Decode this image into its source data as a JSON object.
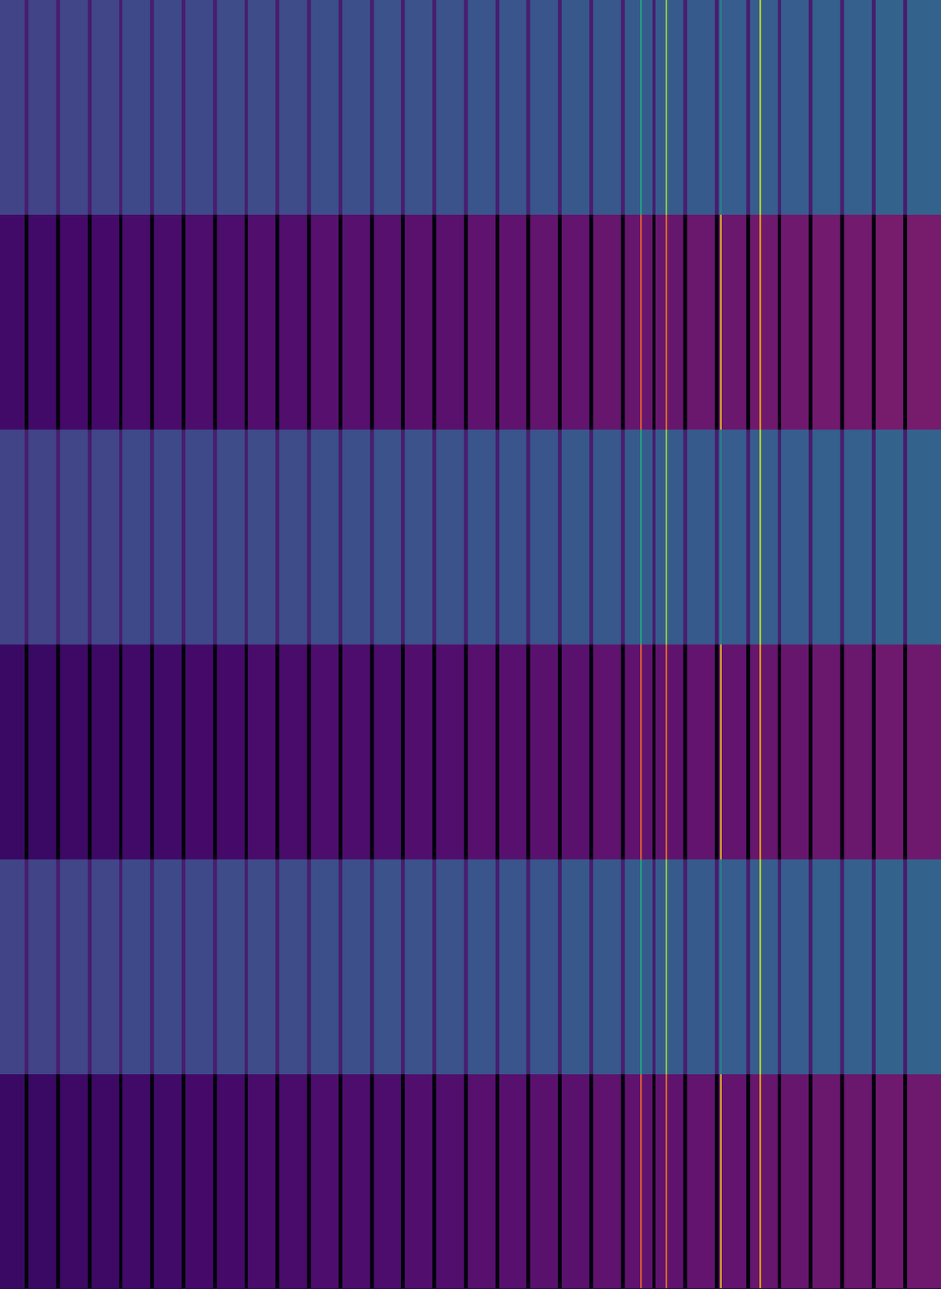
{
  "chart_data": {
    "type": "heatmap",
    "tick_labels": false,
    "xlim": [
      0,
      30
    ],
    "zlim": [
      0,
      1
    ],
    "x_edges": [
      0,
      0.79,
      0.91,
      1.79,
      1.91,
      2.79,
      2.91,
      3.79,
      3.91,
      4.79,
      4.91,
      5.79,
      5.91,
      6.79,
      6.91,
      7.79,
      7.91,
      8.79,
      8.91,
      9.79,
      9.91,
      10.79,
      10.91,
      11.79,
      11.91,
      12.79,
      12.91,
      13.79,
      13.91,
      14.79,
      14.91,
      15.79,
      15.91,
      16.79,
      16.91,
      17.79,
      17.91,
      18.79,
      18.91,
      19.79,
      19.91,
      20.4,
      20.46,
      20.79,
      20.91,
      21.21,
      21.27,
      21.79,
      21.91,
      22.79,
      22.91,
      22.95,
      23.01,
      23.79,
      23.91,
      24.2,
      24.26,
      24.79,
      24.91,
      25.79,
      25.91,
      26.79,
      26.91,
      27.79,
      27.91,
      28.79,
      28.91,
      30
    ],
    "series": [
      {
        "color": "viridis",
        "values": [
          0.2,
          0.08,
          0.2,
          0.08,
          0.21,
          0.08,
          0.21,
          0.08,
          0.22,
          0.08,
          0.22,
          0.08,
          0.22,
          0.08,
          0.23,
          0.08,
          0.23,
          0.08,
          0.23,
          0.08,
          0.24,
          0.08,
          0.24,
          0.08,
          0.25,
          0.08,
          0.25,
          0.08,
          0.25,
          0.08,
          0.26,
          0.08,
          0.26,
          0.08,
          0.26,
          0.08,
          0.27,
          0.08,
          0.27,
          0.08,
          0.28,
          0.6,
          0.28,
          0.08,
          0.28,
          0.85,
          0.28,
          0.08,
          0.28,
          0.08,
          0.29,
          0.45,
          0.29,
          0.08,
          0.29,
          0.9,
          0.29,
          0.08,
          0.29,
          0.08,
          0.3,
          0.08,
          0.3,
          0.08,
          0.31,
          0.08,
          0.31
        ]
      },
      {
        "color": "inferno",
        "values": [
          0.2,
          0.02,
          0.2,
          0.02,
          0.21,
          0.02,
          0.21,
          0.02,
          0.22,
          0.02,
          0.22,
          0.02,
          0.23,
          0.02,
          0.23,
          0.02,
          0.24,
          0.02,
          0.24,
          0.02,
          0.25,
          0.02,
          0.25,
          0.02,
          0.25,
          0.02,
          0.26,
          0.02,
          0.26,
          0.02,
          0.27,
          0.02,
          0.27,
          0.02,
          0.28,
          0.02,
          0.28,
          0.02,
          0.29,
          0.02,
          0.29,
          0.65,
          0.29,
          0.02,
          0.29,
          0.7,
          0.29,
          0.02,
          0.3,
          0.02,
          0.3,
          0.85,
          0.3,
          0.02,
          0.31,
          0.8,
          0.31,
          0.02,
          0.31,
          0.02,
          0.32,
          0.02,
          0.32,
          0.02,
          0.33,
          0.02,
          0.33
        ]
      },
      {
        "color": "viridis",
        "values": [
          0.2,
          0.08,
          0.2,
          0.08,
          0.21,
          0.08,
          0.21,
          0.08,
          0.22,
          0.08,
          0.22,
          0.08,
          0.22,
          0.08,
          0.23,
          0.08,
          0.23,
          0.08,
          0.23,
          0.08,
          0.24,
          0.08,
          0.24,
          0.08,
          0.25,
          0.08,
          0.25,
          0.08,
          0.25,
          0.08,
          0.26,
          0.08,
          0.26,
          0.08,
          0.26,
          0.08,
          0.27,
          0.08,
          0.27,
          0.08,
          0.28,
          0.6,
          0.28,
          0.08,
          0.28,
          0.85,
          0.28,
          0.08,
          0.28,
          0.08,
          0.29,
          0.45,
          0.29,
          0.08,
          0.29,
          0.9,
          0.29,
          0.08,
          0.29,
          0.08,
          0.3,
          0.08,
          0.3,
          0.08,
          0.31,
          0.08,
          0.31
        ]
      },
      {
        "color": "inferno",
        "values": [
          0.18,
          0.02,
          0.18,
          0.02,
          0.19,
          0.02,
          0.19,
          0.02,
          0.2,
          0.02,
          0.2,
          0.02,
          0.21,
          0.02,
          0.21,
          0.02,
          0.22,
          0.02,
          0.22,
          0.02,
          0.23,
          0.02,
          0.23,
          0.02,
          0.23,
          0.02,
          0.24,
          0.02,
          0.24,
          0.02,
          0.25,
          0.02,
          0.25,
          0.02,
          0.26,
          0.02,
          0.26,
          0.02,
          0.27,
          0.02,
          0.27,
          0.65,
          0.27,
          0.02,
          0.27,
          0.7,
          0.27,
          0.02,
          0.28,
          0.02,
          0.28,
          0.85,
          0.28,
          0.02,
          0.29,
          0.8,
          0.29,
          0.02,
          0.29,
          0.02,
          0.3,
          0.02,
          0.3,
          0.02,
          0.31,
          0.02,
          0.31
        ]
      },
      {
        "color": "viridis",
        "values": [
          0.2,
          0.08,
          0.2,
          0.08,
          0.21,
          0.08,
          0.21,
          0.08,
          0.22,
          0.08,
          0.22,
          0.08,
          0.22,
          0.08,
          0.23,
          0.08,
          0.23,
          0.08,
          0.23,
          0.08,
          0.24,
          0.08,
          0.24,
          0.08,
          0.25,
          0.08,
          0.25,
          0.08,
          0.25,
          0.08,
          0.26,
          0.08,
          0.26,
          0.08,
          0.26,
          0.08,
          0.27,
          0.08,
          0.27,
          0.08,
          0.28,
          0.6,
          0.28,
          0.08,
          0.28,
          0.85,
          0.28,
          0.08,
          0.28,
          0.08,
          0.29,
          0.45,
          0.29,
          0.08,
          0.29,
          0.9,
          0.29,
          0.08,
          0.29,
          0.08,
          0.3,
          0.08,
          0.3,
          0.08,
          0.31,
          0.08,
          0.31
        ]
      },
      {
        "color": "inferno",
        "values": [
          0.18,
          0.02,
          0.18,
          0.02,
          0.19,
          0.02,
          0.19,
          0.02,
          0.2,
          0.02,
          0.2,
          0.02,
          0.21,
          0.02,
          0.21,
          0.02,
          0.22,
          0.02,
          0.22,
          0.02,
          0.23,
          0.02,
          0.23,
          0.02,
          0.23,
          0.02,
          0.24,
          0.02,
          0.24,
          0.02,
          0.25,
          0.02,
          0.25,
          0.02,
          0.26,
          0.02,
          0.26,
          0.02,
          0.27,
          0.02,
          0.27,
          0.65,
          0.27,
          0.02,
          0.27,
          0.7,
          0.27,
          0.02,
          0.28,
          0.02,
          0.28,
          0.85,
          0.28,
          0.02,
          0.29,
          0.8,
          0.29,
          0.02,
          0.29,
          0.02,
          0.3,
          0.02,
          0.3,
          0.02,
          0.31,
          0.02,
          0.31
        ]
      }
    ]
  }
}
